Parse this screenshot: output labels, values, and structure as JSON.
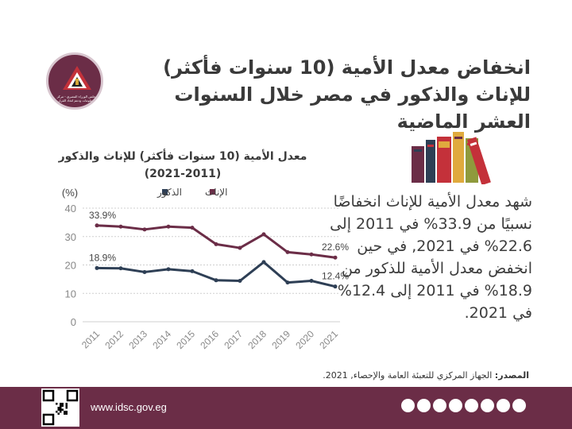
{
  "header": {
    "title": "انخفاض معدل الأمية (10 سنوات فأكثر) للإناث والذكور  في مصر خلال السنوات العشر الماضية",
    "logo_text": "مجلس الوزراء المصري - مركز المعلومات ودعم اتخاذ القرار"
  },
  "description": "شهد معدل الأمية للإناث انخفاضًا نسبيًا من 33.9% في 2011 إلى 22.6% في 2021, في حين انخفض معدل الأمية للذكور من 18.9% في 2011 إلى 12.4% في 2021.",
  "source": {
    "label": "المصدر:",
    "text": " الجهاز المركزي للتعبئة العامة والإحصاء, 2021."
  },
  "footer": {
    "website": "www.idsc.gov.eg",
    "socials": [
      "f",
      "t",
      "yt",
      "ig",
      "in",
      "sc",
      "cl",
      "tg"
    ]
  },
  "colors": {
    "brand": "#6b2d47",
    "female": "#6b2d47",
    "male": "#2e3f55",
    "grid": "#cfcfcf"
  },
  "icons": [
    "books-icon",
    "qr-code-icon",
    "idsc-logo-icon"
  ],
  "chart_data": {
    "type": "line",
    "title": "معدل الأمية (10 سنوات فأكثر) للإناث والذكور",
    "subtitle": "(2021-2011)",
    "ylabel": "(%)",
    "ylim": [
      0,
      40
    ],
    "yticks": [
      0,
      10,
      20,
      30,
      40
    ],
    "grid": true,
    "legend": "top",
    "x": [
      "2011",
      "2012",
      "2013",
      "2014",
      "2015",
      "2016",
      "2017",
      "2018",
      "2019",
      "2020",
      "2021"
    ],
    "series": [
      {
        "name": "الإناث",
        "color": "#6b2d47",
        "values": [
          33.9,
          33.5,
          32.5,
          33.5,
          33.1,
          27.3,
          26.0,
          30.8,
          24.5,
          23.7,
          22.6
        ],
        "labels": [
          {
            "index": 0,
            "text": "33.9%"
          },
          {
            "index": 10,
            "text": "22.6%"
          }
        ]
      },
      {
        "name": "الذكور",
        "color": "#2e3f55",
        "values": [
          18.9,
          18.8,
          17.5,
          18.5,
          17.8,
          14.6,
          14.4,
          21.0,
          13.8,
          14.4,
          12.4
        ],
        "labels": [
          {
            "index": 0,
            "text": "18.9%"
          },
          {
            "index": 10,
            "text": "12.4%"
          }
        ]
      }
    ]
  }
}
